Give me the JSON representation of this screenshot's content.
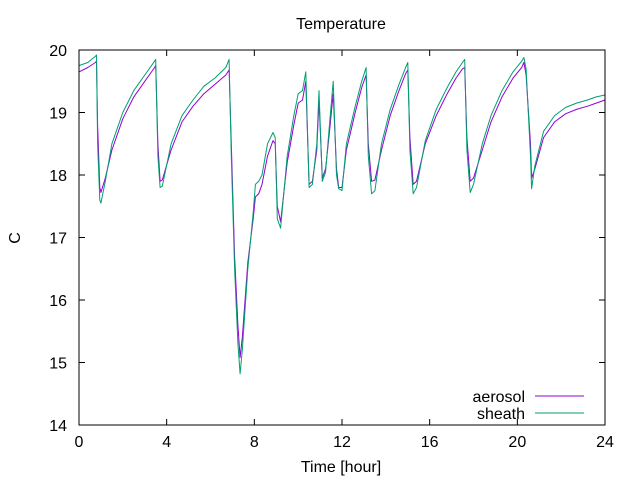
{
  "chart_data": {
    "type": "line",
    "title": "Temperature",
    "xlabel": "Time [hour]",
    "ylabel": "C",
    "xlim": [
      0,
      24
    ],
    "ylim": [
      14,
      20
    ],
    "xticks": [
      0,
      4,
      8,
      12,
      16,
      20,
      24
    ],
    "yticks": [
      14,
      15,
      16,
      17,
      18,
      19,
      20
    ],
    "grid": false,
    "legend_position": "bottom-right",
    "series": [
      {
        "name": "aerosol",
        "color": "#9400d3",
        "points": [
          [
            0.0,
            19.65
          ],
          [
            0.4,
            19.72
          ],
          [
            0.75,
            19.8
          ],
          [
            0.8,
            19.82
          ],
          [
            0.85,
            18.8
          ],
          [
            0.95,
            17.8
          ],
          [
            1.0,
            17.72
          ],
          [
            1.2,
            17.95
          ],
          [
            1.5,
            18.4
          ],
          [
            2.0,
            18.9
          ],
          [
            2.5,
            19.25
          ],
          [
            3.0,
            19.5
          ],
          [
            3.45,
            19.72
          ],
          [
            3.5,
            19.75
          ],
          [
            3.6,
            18.5
          ],
          [
            3.7,
            17.9
          ],
          [
            3.8,
            17.92
          ],
          [
            4.2,
            18.4
          ],
          [
            4.7,
            18.85
          ],
          [
            5.2,
            19.1
          ],
          [
            5.7,
            19.3
          ],
          [
            6.2,
            19.45
          ],
          [
            6.7,
            19.6
          ],
          [
            6.85,
            19.68
          ],
          [
            6.95,
            18.5
          ],
          [
            7.1,
            16.7
          ],
          [
            7.25,
            15.6
          ],
          [
            7.35,
            15.08
          ],
          [
            7.45,
            15.4
          ],
          [
            7.7,
            16.6
          ],
          [
            7.95,
            17.3
          ],
          [
            8.05,
            17.65
          ],
          [
            8.2,
            17.7
          ],
          [
            8.35,
            17.85
          ],
          [
            8.6,
            18.3
          ],
          [
            8.85,
            18.55
          ],
          [
            8.95,
            18.5
          ],
          [
            9.05,
            17.5
          ],
          [
            9.2,
            17.25
          ],
          [
            9.5,
            18.2
          ],
          [
            9.8,
            18.8
          ],
          [
            10.0,
            19.15
          ],
          [
            10.2,
            19.2
          ],
          [
            10.35,
            19.5
          ],
          [
            10.5,
            17.85
          ],
          [
            10.65,
            17.9
          ],
          [
            10.85,
            18.4
          ],
          [
            10.95,
            19.2
          ],
          [
            11.1,
            17.95
          ],
          [
            11.25,
            18.1
          ],
          [
            11.4,
            18.6
          ],
          [
            11.6,
            19.3
          ],
          [
            11.75,
            18.1
          ],
          [
            11.85,
            17.8
          ],
          [
            12.0,
            17.8
          ],
          [
            12.2,
            18.4
          ],
          [
            12.6,
            19.0
          ],
          [
            12.9,
            19.4
          ],
          [
            13.1,
            19.6
          ],
          [
            13.2,
            18.5
          ],
          [
            13.35,
            17.9
          ],
          [
            13.5,
            17.92
          ],
          [
            13.8,
            18.4
          ],
          [
            14.2,
            18.95
          ],
          [
            14.6,
            19.35
          ],
          [
            14.9,
            19.62
          ],
          [
            15.0,
            19.68
          ],
          [
            15.1,
            18.6
          ],
          [
            15.25,
            17.85
          ],
          [
            15.4,
            17.9
          ],
          [
            15.8,
            18.5
          ],
          [
            16.3,
            18.95
          ],
          [
            16.8,
            19.3
          ],
          [
            17.2,
            19.55
          ],
          [
            17.5,
            19.7
          ],
          [
            17.6,
            19.72
          ],
          [
            17.7,
            18.6
          ],
          [
            17.85,
            17.9
          ],
          [
            18.0,
            17.95
          ],
          [
            18.4,
            18.4
          ],
          [
            18.8,
            18.85
          ],
          [
            19.3,
            19.25
          ],
          [
            19.8,
            19.55
          ],
          [
            20.2,
            19.72
          ],
          [
            20.3,
            19.8
          ],
          [
            20.4,
            19.6
          ],
          [
            20.6,
            18.5
          ],
          [
            20.65,
            17.95
          ],
          [
            20.8,
            18.1
          ],
          [
            21.2,
            18.6
          ],
          [
            21.7,
            18.85
          ],
          [
            22.2,
            18.98
          ],
          [
            22.7,
            19.05
          ],
          [
            23.2,
            19.1
          ],
          [
            23.6,
            19.15
          ],
          [
            24.0,
            19.2
          ]
        ]
      },
      {
        "name": "sheath",
        "color": "#009e73",
        "points": [
          [
            0.0,
            19.75
          ],
          [
            0.4,
            19.8
          ],
          [
            0.75,
            19.9
          ],
          [
            0.8,
            19.92
          ],
          [
            0.85,
            18.5
          ],
          [
            0.95,
            17.6
          ],
          [
            1.0,
            17.55
          ],
          [
            1.2,
            17.9
          ],
          [
            1.5,
            18.5
          ],
          [
            2.0,
            19.0
          ],
          [
            2.5,
            19.35
          ],
          [
            3.0,
            19.6
          ],
          [
            3.45,
            19.82
          ],
          [
            3.5,
            19.85
          ],
          [
            3.6,
            18.3
          ],
          [
            3.7,
            17.8
          ],
          [
            3.8,
            17.82
          ],
          [
            4.2,
            18.5
          ],
          [
            4.7,
            18.95
          ],
          [
            5.2,
            19.2
          ],
          [
            5.7,
            19.42
          ],
          [
            6.2,
            19.55
          ],
          [
            6.7,
            19.72
          ],
          [
            6.85,
            19.85
          ],
          [
            6.95,
            18.3
          ],
          [
            7.1,
            16.5
          ],
          [
            7.25,
            15.3
          ],
          [
            7.35,
            14.82
          ],
          [
            7.45,
            15.2
          ],
          [
            7.7,
            16.5
          ],
          [
            7.95,
            17.4
          ],
          [
            8.05,
            17.85
          ],
          [
            8.2,
            17.9
          ],
          [
            8.35,
            18.0
          ],
          [
            8.6,
            18.5
          ],
          [
            8.85,
            18.68
          ],
          [
            8.95,
            18.6
          ],
          [
            9.05,
            17.3
          ],
          [
            9.2,
            17.15
          ],
          [
            9.5,
            18.3
          ],
          [
            9.8,
            18.95
          ],
          [
            10.0,
            19.3
          ],
          [
            10.2,
            19.35
          ],
          [
            10.35,
            19.65
          ],
          [
            10.5,
            17.8
          ],
          [
            10.65,
            17.85
          ],
          [
            10.85,
            18.5
          ],
          [
            10.95,
            19.35
          ],
          [
            11.1,
            17.9
          ],
          [
            11.25,
            18.05
          ],
          [
            11.4,
            18.7
          ],
          [
            11.6,
            19.5
          ],
          [
            11.75,
            18.0
          ],
          [
            11.85,
            17.78
          ],
          [
            12.0,
            17.75
          ],
          [
            12.2,
            18.5
          ],
          [
            12.6,
            19.1
          ],
          [
            12.9,
            19.5
          ],
          [
            13.1,
            19.72
          ],
          [
            13.2,
            18.3
          ],
          [
            13.35,
            17.7
          ],
          [
            13.5,
            17.75
          ],
          [
            13.8,
            18.5
          ],
          [
            14.2,
            19.05
          ],
          [
            14.6,
            19.45
          ],
          [
            14.9,
            19.72
          ],
          [
            15.0,
            19.8
          ],
          [
            15.1,
            18.4
          ],
          [
            15.25,
            17.7
          ],
          [
            15.4,
            17.8
          ],
          [
            15.8,
            18.55
          ],
          [
            16.3,
            19.05
          ],
          [
            16.8,
            19.4
          ],
          [
            17.2,
            19.65
          ],
          [
            17.5,
            19.8
          ],
          [
            17.6,
            19.85
          ],
          [
            17.7,
            18.4
          ],
          [
            17.85,
            17.72
          ],
          [
            18.0,
            17.85
          ],
          [
            18.4,
            18.5
          ],
          [
            18.8,
            18.95
          ],
          [
            19.3,
            19.35
          ],
          [
            19.8,
            19.65
          ],
          [
            20.2,
            19.82
          ],
          [
            20.3,
            19.88
          ],
          [
            20.4,
            19.7
          ],
          [
            20.6,
            18.3
          ],
          [
            20.65,
            17.78
          ],
          [
            20.8,
            18.15
          ],
          [
            21.2,
            18.7
          ],
          [
            21.7,
            18.95
          ],
          [
            22.2,
            19.08
          ],
          [
            22.7,
            19.15
          ],
          [
            23.2,
            19.2
          ],
          [
            23.6,
            19.25
          ],
          [
            24.0,
            19.28
          ]
        ]
      }
    ]
  }
}
